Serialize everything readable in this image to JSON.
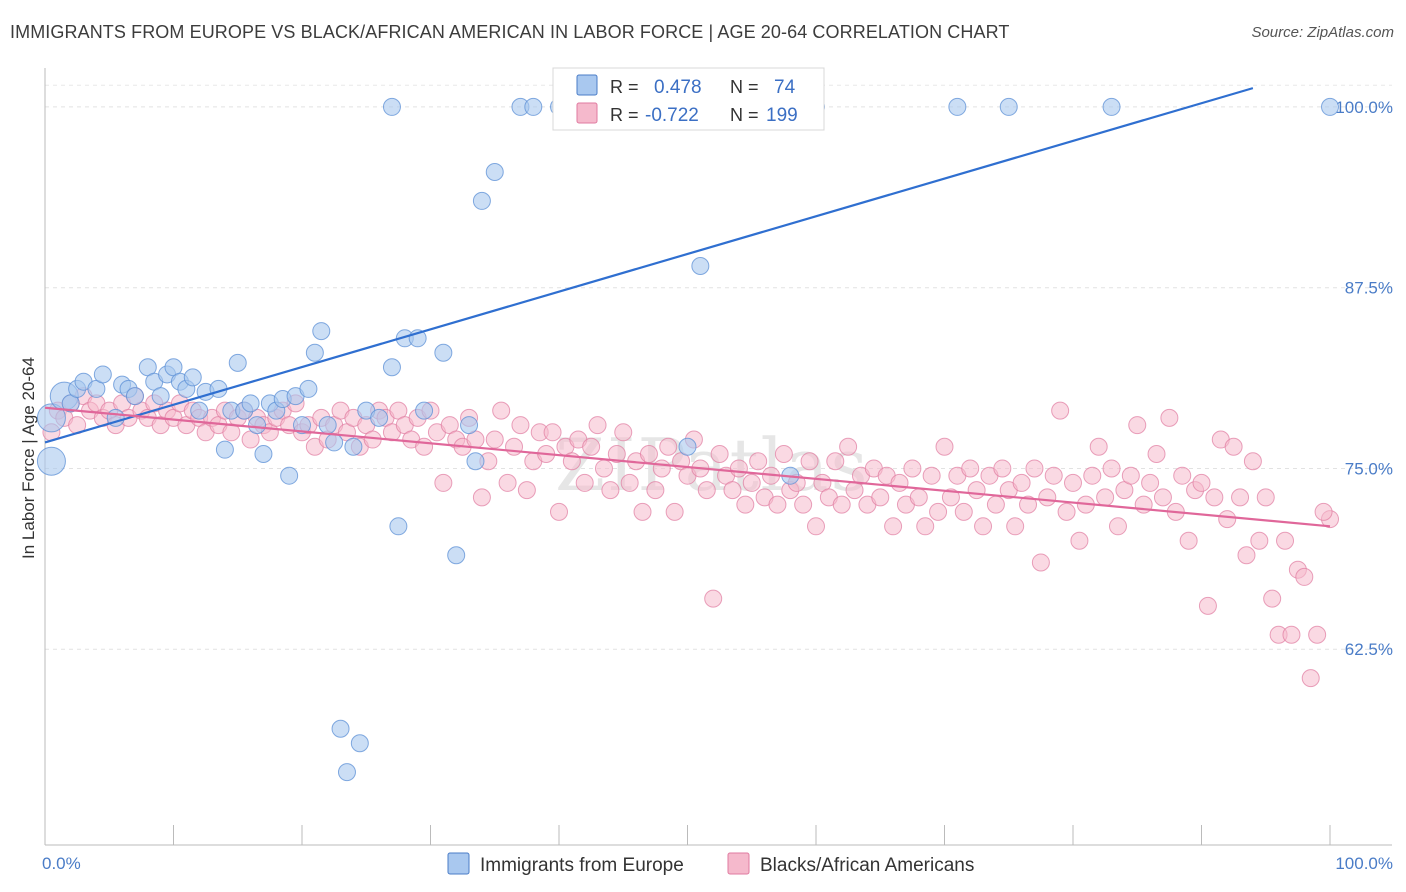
{
  "header": {
    "title": "IMMIGRANTS FROM EUROPE VS BLACK/AFRICAN AMERICAN IN LABOR FORCE | AGE 20-64 CORRELATION CHART",
    "source": "Source: ZipAtlas.com"
  },
  "watermark": "ZIPatlas",
  "legend": {
    "r_label": "R =",
    "n_label": "N =",
    "rows": [
      {
        "r": "0.478",
        "n": "74",
        "color": "#a9c8ef",
        "stroke": "#4a7cc7"
      },
      {
        "r": "-0.722",
        "n": "199",
        "color": "#f5b9cc",
        "stroke": "#e07aa0"
      }
    ]
  },
  "chart_data": {
    "type": "scatter",
    "ylabel": "In Labor Force | Age 20-64",
    "xlim": [
      0,
      100
    ],
    "ylim": [
      50.0,
      102.0
    ],
    "x_tick_labels": [
      "0.0%",
      "100.0%"
    ],
    "y_ticks": [
      62.5,
      75.0,
      87.5,
      100.0
    ],
    "y_tick_labels": [
      "62.5%",
      "75.0%",
      "87.5%",
      "100.0%"
    ],
    "grid": "horizontal-dashed",
    "legend_position": "top-center",
    "series": [
      {
        "name": "Immigrants from Europe",
        "color": "#a9c8ef",
        "stroke": "#5b8fd6",
        "trend_color": "#2f6fd0",
        "trend": {
          "x": [
            0,
            94
          ],
          "y": [
            76.8,
            101.3
          ]
        },
        "points": [
          [
            0.5,
            75.5,
            1
          ],
          [
            0.5,
            78.5,
            1
          ],
          [
            1.5,
            80.0,
            1
          ],
          [
            2.0,
            79.5,
            0
          ],
          [
            2.5,
            80.5,
            0
          ],
          [
            3.0,
            81.0,
            0
          ],
          [
            4.0,
            80.5,
            0
          ],
          [
            4.5,
            81.5,
            0
          ],
          [
            5.5,
            78.5,
            0
          ],
          [
            6.0,
            80.8,
            0
          ],
          [
            6.5,
            80.5,
            0
          ],
          [
            7.0,
            80.0,
            0
          ],
          [
            8.0,
            82.0,
            0
          ],
          [
            8.5,
            81.0,
            0
          ],
          [
            9.0,
            80.0,
            0
          ],
          [
            9.5,
            81.5,
            0
          ],
          [
            10.0,
            82.0,
            0
          ],
          [
            10.5,
            81.0,
            0
          ],
          [
            11.0,
            80.5,
            0
          ],
          [
            11.5,
            81.3,
            0
          ],
          [
            12.0,
            79.0,
            0
          ],
          [
            12.5,
            80.3,
            0
          ],
          [
            13.5,
            80.5,
            0
          ],
          [
            14.0,
            76.3,
            0
          ],
          [
            14.5,
            79.0,
            0
          ],
          [
            15.0,
            82.3,
            0
          ],
          [
            15.5,
            79.0,
            0
          ],
          [
            16.0,
            79.5,
            0
          ],
          [
            16.5,
            78.0,
            0
          ],
          [
            17.0,
            76.0,
            0
          ],
          [
            17.5,
            79.5,
            0
          ],
          [
            18.0,
            79.0,
            0
          ],
          [
            18.5,
            79.8,
            0
          ],
          [
            19.0,
            74.5,
            0
          ],
          [
            19.5,
            80.0,
            0
          ],
          [
            20.0,
            78.0,
            0
          ],
          [
            20.5,
            80.5,
            0
          ],
          [
            21.0,
            83.0,
            0
          ],
          [
            21.5,
            84.5,
            0
          ],
          [
            22.0,
            78.0,
            0
          ],
          [
            22.5,
            76.8,
            0
          ],
          [
            23.0,
            57.0,
            0
          ],
          [
            23.5,
            54.0,
            0
          ],
          [
            24.0,
            76.5,
            0
          ],
          [
            24.5,
            56.0,
            0
          ],
          [
            25.0,
            79.0,
            0
          ],
          [
            26.0,
            78.5,
            0
          ],
          [
            27.0,
            82.0,
            0
          ],
          [
            27.5,
            71.0,
            0
          ],
          [
            28.0,
            84.0,
            0
          ],
          [
            29.0,
            84.0,
            0
          ],
          [
            29.5,
            79.0,
            0
          ],
          [
            31.0,
            83.0,
            0
          ],
          [
            32.0,
            69.0,
            0
          ],
          [
            33.0,
            78.0,
            0
          ],
          [
            33.5,
            75.5,
            0
          ],
          [
            34.0,
            93.5,
            0
          ],
          [
            35.0,
            95.5,
            0
          ],
          [
            37.0,
            100.0,
            0
          ],
          [
            38.0,
            100.0,
            0
          ],
          [
            40.0,
            100.0,
            0
          ],
          [
            42.0,
            100.0,
            0
          ],
          [
            42.5,
            100.0,
            0
          ],
          [
            44.0,
            100.0,
            0
          ],
          [
            50.0,
            76.5,
            0
          ],
          [
            51.0,
            89.0,
            0
          ],
          [
            58.0,
            74.5,
            0
          ],
          [
            59.0,
            100.0,
            0
          ],
          [
            60.0,
            100.0,
            0
          ],
          [
            71.0,
            100.0,
            0
          ],
          [
            75.0,
            100.0,
            0
          ],
          [
            83.0,
            100.0,
            0
          ],
          [
            100.0,
            100.0,
            0
          ],
          [
            27.0,
            100.0,
            0
          ]
        ]
      },
      {
        "name": "Blacks/African Americans",
        "color": "#f5b9cc",
        "stroke": "#e07aa0",
        "trend_color": "#e0679a",
        "trend": {
          "x": [
            0,
            100
          ],
          "y": [
            79.2,
            71.0
          ]
        },
        "points": [
          [
            0.5,
            77.5
          ],
          [
            1.0,
            79.0
          ],
          [
            1.5,
            78.5
          ],
          [
            2.0,
            79.5
          ],
          [
            2.5,
            78.0
          ],
          [
            3.0,
            80.0
          ],
          [
            3.5,
            79.0
          ],
          [
            4.0,
            79.5
          ],
          [
            4.5,
            78.5
          ],
          [
            5.0,
            79.0
          ],
          [
            5.5,
            78.0
          ],
          [
            6.0,
            79.5
          ],
          [
            6.5,
            78.5
          ],
          [
            7.0,
            80.0
          ],
          [
            7.5,
            79.0
          ],
          [
            8.0,
            78.5
          ],
          [
            8.5,
            79.5
          ],
          [
            9.0,
            78.0
          ],
          [
            9.5,
            79.0
          ],
          [
            10.0,
            78.5
          ],
          [
            10.5,
            79.5
          ],
          [
            11.0,
            78.0
          ],
          [
            11.5,
            79.0
          ],
          [
            12.0,
            78.5
          ],
          [
            12.5,
            77.5
          ],
          [
            13.0,
            78.5
          ],
          [
            13.5,
            78.0
          ],
          [
            14.0,
            79.0
          ],
          [
            14.5,
            77.5
          ],
          [
            15.0,
            78.5
          ],
          [
            15.5,
            79.0
          ],
          [
            16.0,
            77.0
          ],
          [
            16.5,
            78.5
          ],
          [
            17.0,
            78.0
          ],
          [
            17.5,
            77.5
          ],
          [
            18.0,
            78.5
          ],
          [
            18.5,
            79.0
          ],
          [
            19.0,
            78.0
          ],
          [
            19.5,
            79.5
          ],
          [
            20.0,
            77.5
          ],
          [
            20.5,
            78.0
          ],
          [
            21.0,
            76.5
          ],
          [
            21.5,
            78.5
          ],
          [
            22.0,
            77.0
          ],
          [
            22.5,
            78.0
          ],
          [
            23.0,
            79.0
          ],
          [
            23.5,
            77.5
          ],
          [
            24.0,
            78.5
          ],
          [
            24.5,
            76.5
          ],
          [
            25.0,
            78.0
          ],
          [
            25.5,
            77.0
          ],
          [
            26.0,
            79.0
          ],
          [
            26.5,
            78.5
          ],
          [
            27.0,
            77.5
          ],
          [
            27.5,
            79.0
          ],
          [
            28.0,
            78.0
          ],
          [
            28.5,
            77.0
          ],
          [
            29.0,
            78.5
          ],
          [
            29.5,
            76.5
          ],
          [
            30.0,
            79.0
          ],
          [
            30.5,
            77.5
          ],
          [
            31.0,
            74.0
          ],
          [
            31.5,
            78.0
          ],
          [
            32.0,
            77.0
          ],
          [
            32.5,
            76.5
          ],
          [
            33.0,
            78.5
          ],
          [
            33.5,
            77.0
          ],
          [
            34.0,
            73.0
          ],
          [
            34.5,
            75.5
          ],
          [
            35.0,
            77.0
          ],
          [
            35.5,
            79.0
          ],
          [
            36.0,
            74.0
          ],
          [
            36.5,
            76.5
          ],
          [
            37.0,
            78.0
          ],
          [
            37.5,
            73.5
          ],
          [
            38.0,
            75.5
          ],
          [
            38.5,
            77.5
          ],
          [
            39.0,
            76.0
          ],
          [
            39.5,
            77.5
          ],
          [
            40.0,
            72.0
          ],
          [
            40.5,
            76.5
          ],
          [
            41.0,
            75.5
          ],
          [
            41.5,
            77.0
          ],
          [
            42.0,
            74.0
          ],
          [
            42.5,
            76.5
          ],
          [
            43.0,
            78.0
          ],
          [
            43.5,
            75.0
          ],
          [
            44.0,
            73.5
          ],
          [
            44.5,
            76.0
          ],
          [
            45.0,
            77.5
          ],
          [
            45.5,
            74.0
          ],
          [
            46.0,
            75.5
          ],
          [
            46.5,
            72.0
          ],
          [
            47.0,
            76.0
          ],
          [
            47.5,
            73.5
          ],
          [
            48.0,
            75.0
          ],
          [
            48.5,
            76.5
          ],
          [
            49.0,
            72.0
          ],
          [
            49.5,
            75.5
          ],
          [
            50.0,
            74.5
          ],
          [
            50.5,
            77.0
          ],
          [
            51.0,
            75.0
          ],
          [
            51.5,
            73.5
          ],
          [
            52.0,
            66.0
          ],
          [
            52.5,
            76.0
          ],
          [
            53.0,
            74.5
          ],
          [
            53.5,
            73.5
          ],
          [
            54.0,
            75.0
          ],
          [
            54.5,
            72.5
          ],
          [
            55.0,
            74.0
          ],
          [
            55.5,
            75.5
          ],
          [
            56.0,
            73.0
          ],
          [
            56.5,
            74.5
          ],
          [
            57.0,
            72.5
          ],
          [
            57.5,
            76.0
          ],
          [
            58.0,
            73.5
          ],
          [
            58.5,
            74.0
          ],
          [
            59.0,
            72.5
          ],
          [
            59.5,
            75.5
          ],
          [
            60.0,
            71.0
          ],
          [
            60.5,
            74.0
          ],
          [
            61.0,
            73.0
          ],
          [
            61.5,
            75.5
          ],
          [
            62.0,
            72.5
          ],
          [
            62.5,
            76.5
          ],
          [
            63.0,
            73.5
          ],
          [
            63.5,
            74.5
          ],
          [
            64.0,
            72.5
          ],
          [
            64.5,
            75.0
          ],
          [
            65.0,
            73.0
          ],
          [
            65.5,
            74.5
          ],
          [
            66.0,
            71.0
          ],
          [
            66.5,
            74.0
          ],
          [
            67.0,
            72.5
          ],
          [
            67.5,
            75.0
          ],
          [
            68.0,
            73.0
          ],
          [
            68.5,
            71.0
          ],
          [
            69.0,
            74.5
          ],
          [
            69.5,
            72.0
          ],
          [
            70.0,
            76.5
          ],
          [
            70.5,
            73.0
          ],
          [
            71.0,
            74.5
          ],
          [
            71.5,
            72.0
          ],
          [
            72.0,
            75.0
          ],
          [
            72.5,
            73.5
          ],
          [
            73.0,
            71.0
          ],
          [
            73.5,
            74.5
          ],
          [
            74.0,
            72.5
          ],
          [
            74.5,
            75.0
          ],
          [
            75.0,
            73.5
          ],
          [
            75.5,
            71.0
          ],
          [
            76.0,
            74.0
          ],
          [
            76.5,
            72.5
          ],
          [
            77.0,
            75.0
          ],
          [
            77.5,
            68.5
          ],
          [
            78.0,
            73.0
          ],
          [
            78.5,
            74.5
          ],
          [
            79.0,
            79.0
          ],
          [
            79.5,
            72.0
          ],
          [
            80.0,
            74.0
          ],
          [
            80.5,
            70.0
          ],
          [
            81.0,
            72.5
          ],
          [
            81.5,
            74.5
          ],
          [
            82.0,
            76.5
          ],
          [
            82.5,
            73.0
          ],
          [
            83.0,
            75.0
          ],
          [
            83.5,
            71.0
          ],
          [
            84.0,
            73.5
          ],
          [
            84.5,
            74.5
          ],
          [
            85.0,
            78.0
          ],
          [
            85.5,
            72.5
          ],
          [
            86.0,
            74.0
          ],
          [
            86.5,
            76.0
          ],
          [
            87.0,
            73.0
          ],
          [
            87.5,
            78.5
          ],
          [
            88.0,
            72.0
          ],
          [
            88.5,
            74.5
          ],
          [
            89.0,
            70.0
          ],
          [
            89.5,
            73.5
          ],
          [
            90.0,
            74.0
          ],
          [
            90.5,
            65.5
          ],
          [
            91.0,
            73.0
          ],
          [
            91.5,
            77.0
          ],
          [
            92.0,
            71.5
          ],
          [
            92.5,
            76.5
          ],
          [
            93.0,
            73.0
          ],
          [
            93.5,
            69.0
          ],
          [
            94.0,
            75.5
          ],
          [
            94.5,
            70.0
          ],
          [
            95.0,
            73.0
          ],
          [
            95.5,
            66.0
          ],
          [
            96.0,
            63.5
          ],
          [
            96.5,
            70.0
          ],
          [
            97.0,
            63.5
          ],
          [
            97.5,
            68.0
          ],
          [
            98.0,
            67.5
          ],
          [
            98.5,
            60.5
          ],
          [
            99.0,
            63.5
          ],
          [
            100.0,
            71.5
          ],
          [
            99.5,
            72.0
          ]
        ]
      }
    ]
  },
  "bottom_legend": [
    "Immigrants from Europe",
    "Blacks/African Americans"
  ]
}
